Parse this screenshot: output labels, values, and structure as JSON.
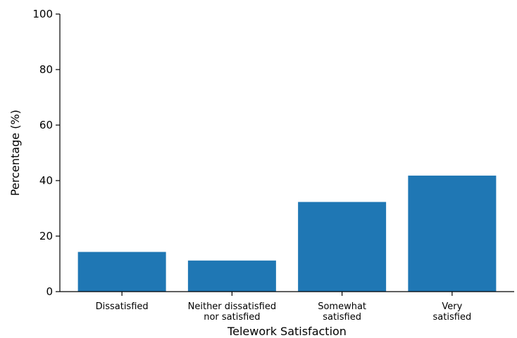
{
  "chart_data": {
    "type": "bar",
    "title": "",
    "xlabel": "Telework Satisfaction",
    "ylabel": "Percentage (%)",
    "ylim": [
      0,
      100
    ],
    "yticks": [
      0,
      20,
      40,
      60,
      80,
      100
    ],
    "grid": false,
    "categories": [
      [
        "Dissatisfied"
      ],
      [
        "Neither dissatisfied",
        "nor satisfied"
      ],
      [
        "Somewhat",
        "satisfied"
      ],
      [
        "Very",
        "satisfied"
      ]
    ],
    "values": [
      14.3,
      11.2,
      32.3,
      41.8
    ],
    "colors": {
      "bar": "#1f77b4",
      "axis": "#000000",
      "background": "#ffffff"
    }
  }
}
